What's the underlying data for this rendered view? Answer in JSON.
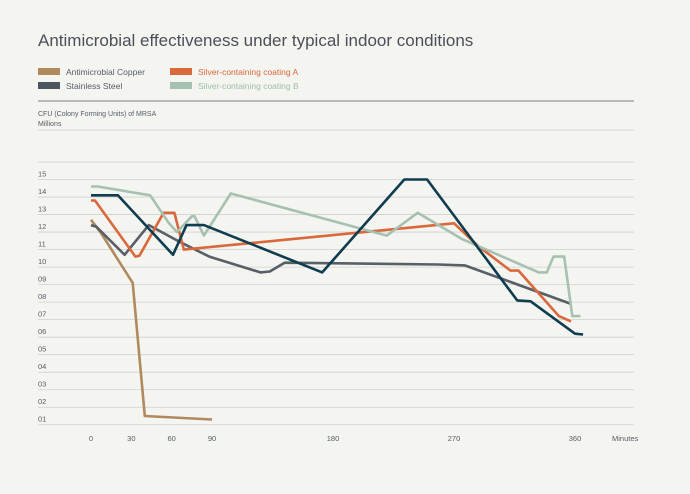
{
  "chart_data": {
    "type": "line",
    "title": "Antimicrobial effectiveness under typical indoor conditions",
    "ylabel": "CFU (Colony Forming Units) of MRSA",
    "ylabel_unit": "Millions",
    "xlabel": "Minutes",
    "x_ticks": [
      {
        "value": 0,
        "label": "0"
      },
      {
        "value": 30,
        "label": "30"
      },
      {
        "value": 60,
        "label": "60"
      },
      {
        "value": 90,
        "label": "90"
      },
      {
        "value": 180,
        "label": "180"
      },
      {
        "value": 270,
        "label": "270"
      },
      {
        "value": 360,
        "label": "360"
      }
    ],
    "y_ticks": [
      {
        "value": 1,
        "label": "01"
      },
      {
        "value": 2,
        "label": "02"
      },
      {
        "value": 3,
        "label": "03"
      },
      {
        "value": 4,
        "label": "04"
      },
      {
        "value": 5,
        "label": "05"
      },
      {
        "value": 6,
        "label": "06"
      },
      {
        "value": 7,
        "label": "07"
      },
      {
        "value": 8,
        "label": "08"
      },
      {
        "value": 9,
        "label": "09"
      },
      {
        "value": 10,
        "label": "10"
      },
      {
        "value": 11,
        "label": "11"
      },
      {
        "value": 12,
        "label": "12"
      },
      {
        "value": 13,
        "label": "13"
      },
      {
        "value": 14,
        "label": "14"
      },
      {
        "value": 15,
        "label": "15"
      }
    ],
    "ylim": [
      0.7,
      16.8
    ],
    "grid": true,
    "legend_position": "top-left",
    "series": [
      {
        "name": "Antimicrobial Copper",
        "color": "#b0895e",
        "points": [
          [
            0,
            12.7
          ],
          [
            7,
            12.0
          ],
          [
            31,
            9.1
          ],
          [
            40,
            1.5
          ],
          [
            90,
            1.3
          ]
        ]
      },
      {
        "name": "Stainless Steel",
        "color": "#585f67",
        "points": [
          [
            0,
            12.4
          ],
          [
            4,
            12.3
          ],
          [
            25,
            10.7
          ],
          [
            43,
            12.4
          ],
          [
            67,
            11.4
          ],
          [
            88,
            10.6
          ],
          [
            126,
            9.7
          ],
          [
            133,
            9.75
          ],
          [
            144,
            10.25
          ],
          [
            258,
            10.15
          ],
          [
            278,
            10.1
          ],
          [
            357,
            7.9
          ]
        ]
      },
      {
        "name": "Silver-containing coating A",
        "color": "#d9683b",
        "points": [
          [
            0,
            13.8
          ],
          [
            3,
            13.8
          ],
          [
            33,
            10.6
          ],
          [
            36,
            10.65
          ],
          [
            54,
            13.1
          ],
          [
            62,
            13.1
          ],
          [
            69,
            11.0
          ],
          [
            270,
            12.5
          ],
          [
            288,
            11.2
          ],
          [
            312,
            9.8
          ],
          [
            318,
            9.8
          ],
          [
            348,
            7.2
          ],
          [
            357,
            6.9
          ]
        ]
      },
      {
        "name": "Silver-containing coating B",
        "color": "#a6c1b1",
        "points": [
          [
            0,
            14.6
          ],
          [
            5,
            14.6
          ],
          [
            44,
            14.1
          ],
          [
            58,
            12.5
          ],
          [
            64,
            12.0
          ],
          [
            75,
            12.9
          ],
          [
            77,
            12.9
          ],
          [
            84,
            11.8
          ],
          [
            104,
            14.2
          ],
          [
            220,
            11.8
          ],
          [
            243,
            13.1
          ],
          [
            276,
            11.6
          ],
          [
            333,
            9.7
          ],
          [
            339,
            9.7
          ],
          [
            344,
            10.6
          ],
          [
            352,
            10.6
          ],
          [
            358,
            7.2
          ],
          [
            364,
            7.2
          ]
        ]
      },
      {
        "name": "Antimicrobial Copper dark",
        "legend_hidden": true,
        "color": "#0f3d4f",
        "points": [
          [
            0,
            14.1
          ],
          [
            20,
            14.1
          ],
          [
            61,
            10.7
          ],
          [
            71,
            12.4
          ],
          [
            84,
            12.4
          ],
          [
            172,
            9.7
          ],
          [
            233,
            15.0
          ],
          [
            250,
            15.0
          ],
          [
            317,
            8.1
          ],
          [
            327,
            8.05
          ],
          [
            360,
            6.2
          ],
          [
            366,
            6.15
          ]
        ]
      }
    ]
  },
  "legend": [
    {
      "label": "Antimicrobial Copper",
      "color": "#b0895e",
      "text_color": "#555d64"
    },
    {
      "label": "Stainless Steel",
      "color": "#4b5660",
      "text_color": "#555d64"
    },
    {
      "label": "Silver-containing coating A",
      "color": "#d9683b",
      "text_color": "#d9683b"
    },
    {
      "label": "Silver-containing coating B",
      "color": "#a6c1b1",
      "text_color": "#9fbcaa"
    }
  ]
}
